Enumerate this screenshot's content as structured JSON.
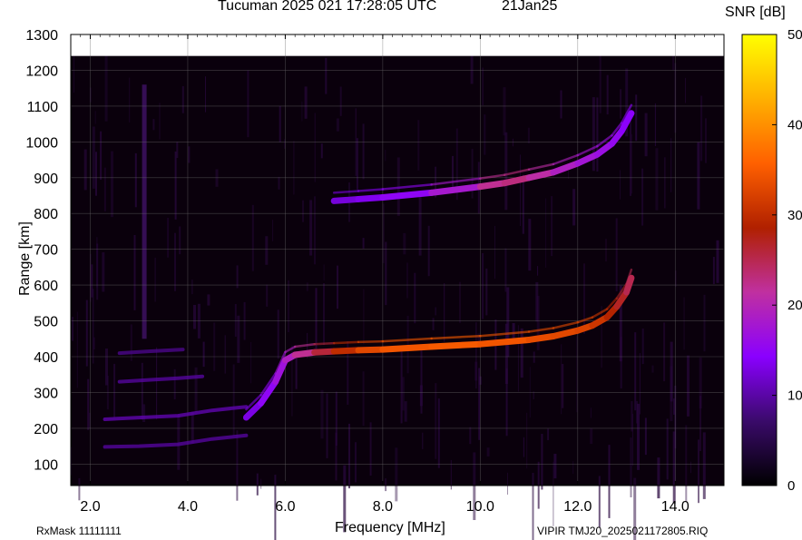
{
  "header": {
    "title": "Tucuman 2025 021 17:28:05 UTC",
    "date": "21Jan25"
  },
  "footer": {
    "rxmask": "RxMask 11111111",
    "file": "VIPIR  TMJ20_2025021172805.RIQ"
  },
  "chart_data": {
    "type": "heatmap",
    "xlabel": "Frequency [MHz]",
    "ylabel": "Range [km]",
    "xlim": [
      1.6,
      15.0
    ],
    "ylim": [
      40,
      1300
    ],
    "x_ticks": [
      2.0,
      4.0,
      6.0,
      8.0,
      10.0,
      12.0,
      14.0
    ],
    "x_tick_labels": [
      "2.0",
      "4.0",
      "6.0",
      "8.0",
      "10.0",
      "12.0",
      "14.0"
    ],
    "y_ticks": [
      100,
      200,
      300,
      400,
      500,
      600,
      700,
      800,
      900,
      1000,
      1100,
      1200,
      1300
    ],
    "y_tick_labels": [
      "100",
      "200",
      "300",
      "400",
      "500",
      "600",
      "700",
      "800",
      "900",
      "1000",
      "1100",
      "1200",
      "1300"
    ],
    "grid": true,
    "colorbar": {
      "label": "SNR [dB]",
      "range": [
        0,
        50
      ],
      "ticks": [
        0,
        10,
        20,
        30,
        40,
        50
      ],
      "tick_labels": [
        "0",
        "10",
        "20",
        "30",
        "40",
        "50"
      ],
      "colors": [
        "#000000",
        "#3a0a6a",
        "#8a00ff",
        "#c030a0",
        "#b02000",
        "#ff6000",
        "#ffb000",
        "#ffff00"
      ]
    },
    "series": [
      {
        "x": [
          5.2,
          5.5,
          5.8,
          6.0,
          6.2,
          6.6,
          7.0,
          7.5,
          8.0,
          9.0,
          10.0,
          11.0,
          11.5,
          12.0,
          12.3,
          12.6,
          12.8,
          13.0,
          13.1
        ],
        "y": [
          230,
          270,
          330,
          390,
          405,
          412,
          415,
          418,
          420,
          428,
          435,
          447,
          457,
          473,
          487,
          510,
          540,
          580,
          620
        ],
        "snr": [
          12,
          14,
          16,
          18,
          20,
          24,
          28,
          32,
          34,
          35,
          35,
          34,
          33,
          33,
          32,
          30,
          28,
          26,
          24
        ]
      },
      {
        "x": [
          7.0,
          7.5,
          8.0,
          9.0,
          10.0,
          10.5,
          11.0,
          11.5,
          12.0,
          12.4,
          12.7,
          12.9,
          13.1
        ],
        "y": [
          835,
          840,
          845,
          858,
          875,
          885,
          900,
          915,
          940,
          965,
          995,
          1030,
          1080
        ],
        "snr": [
          12,
          13,
          14,
          16,
          20,
          24,
          22,
          20,
          18,
          17,
          16,
          15,
          14
        ]
      }
    ],
    "low_frequency_traces": [
      {
        "x": [
          2.3,
          3.0,
          3.8,
          4.5,
          5.2
        ],
        "y": [
          148,
          150,
          155,
          170,
          180
        ],
        "snr": 10
      },
      {
        "x": [
          2.3,
          3.0,
          3.8,
          4.5,
          5.2
        ],
        "y": [
          225,
          230,
          235,
          250,
          260
        ],
        "snr": 11
      },
      {
        "x": [
          2.6,
          3.2,
          3.8,
          4.3
        ],
        "y": [
          330,
          335,
          340,
          345
        ],
        "snr": 10
      },
      {
        "x": [
          2.6,
          3.2,
          3.9
        ],
        "y": [
          410,
          415,
          420
        ],
        "snr": 9
      }
    ]
  }
}
